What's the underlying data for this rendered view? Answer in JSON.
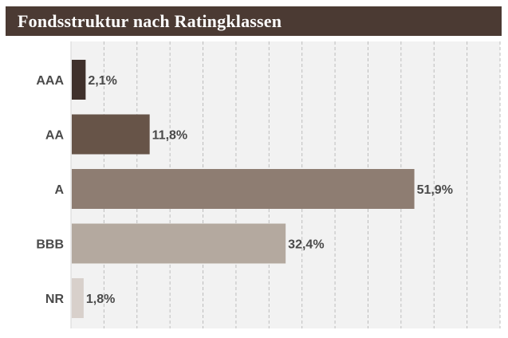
{
  "title": "Fondsstruktur nach Ratingklassen",
  "chart_data": {
    "type": "bar",
    "orientation": "horizontal",
    "title": "Fondsstruktur nach Ratingklassen",
    "categories": [
      "AAA",
      "AA",
      "A",
      "BBB",
      "NR"
    ],
    "values": [
      2.1,
      11.8,
      51.9,
      32.4,
      1.8
    ],
    "value_labels": [
      "2,1%",
      "11,8%",
      "51,9%",
      "32,4%",
      "1,8%"
    ],
    "colors": [
      "#3f302b",
      "#675448",
      "#8e7d72",
      "#b4a99f",
      "#d8d0cb"
    ],
    "xlim": [
      0,
      65
    ],
    "grid": true,
    "plot_background": "#f2f2f2",
    "grid_color": "#bdbdbd",
    "xlabel": "",
    "ylabel": ""
  }
}
